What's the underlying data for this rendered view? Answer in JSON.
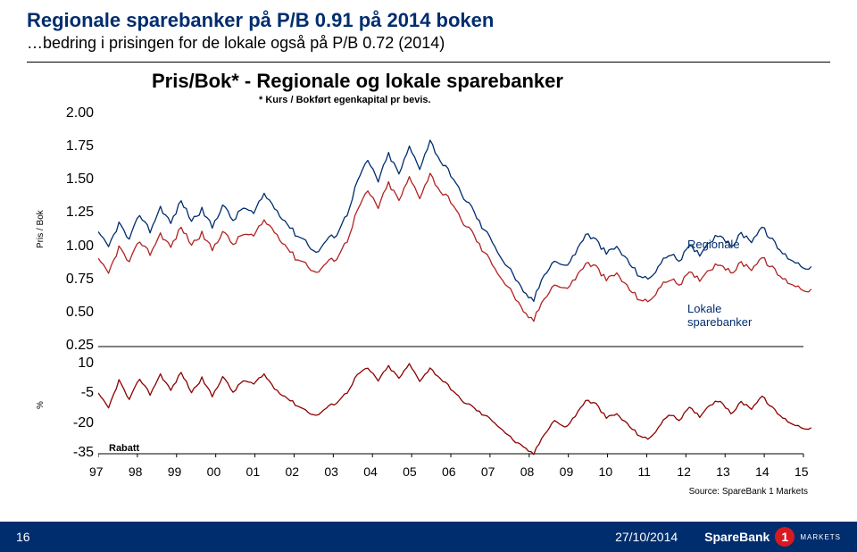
{
  "title": "Regionale sparebanker på P/B 0.91 på 2014 boken",
  "subtitle": "…bedring i prisingen for de lokale også på P/B 0.72 (2014)",
  "chart": {
    "title": "Pris/Bok* - Regionale og lokale sparebanker",
    "footnote": "* Kurs / Bokført egenkapital pr bevis.",
    "source": "Source: SpareBank 1 Markets",
    "y1_label": "Pris / Bok",
    "y2_label": "%",
    "y1_ticks": [
      2.0,
      1.75,
      1.5,
      1.25,
      1.0,
      0.75,
      0.5,
      0.25
    ],
    "y2_ticks": [
      10,
      -5,
      -20,
      -35
    ],
    "x_labels": [
      "97",
      "98",
      "99",
      "00",
      "01",
      "02",
      "03",
      "04",
      "05",
      "06",
      "07",
      "08",
      "09",
      "10",
      "11",
      "12",
      "13",
      "14",
      "15"
    ],
    "background": "#ffffff",
    "series_colors": {
      "regionale": "#002d6e",
      "lokale": "#b22222",
      "rabatt": "#8b0000"
    },
    "line_width": 1.3,
    "series_labels": {
      "regionale": "Regionale",
      "lokale": "Lokale\nsparebanker",
      "rabatt": "Rabatt"
    },
    "top_panel": {
      "ylim": [
        0.25,
        2.0
      ],
      "regionale": [
        1.1,
        1.0,
        1.18,
        1.05,
        1.25,
        1.12,
        1.3,
        1.18,
        1.35,
        1.2,
        1.28,
        1.15,
        1.32,
        1.2,
        1.3,
        1.25,
        1.4,
        1.3,
        1.2,
        1.1,
        1.05,
        0.95,
        1.05,
        1.1,
        1.25,
        1.5,
        1.65,
        1.5,
        1.7,
        1.55,
        1.75,
        1.6,
        1.8,
        1.65,
        1.55,
        1.4,
        1.3,
        1.15,
        1.05,
        0.9,
        0.8,
        0.65,
        0.6,
        0.8,
        0.9,
        0.85,
        0.95,
        1.1,
        1.05,
        0.95,
        1.0,
        0.9,
        0.8,
        0.75,
        0.85,
        0.95,
        0.9,
        1.0,
        0.95,
        1.05,
        1.1,
        1.0,
        1.1,
        1.05,
        1.15,
        1.05,
        0.95,
        0.9,
        0.85
      ],
      "lokale": [
        0.9,
        0.8,
        1.0,
        0.88,
        1.05,
        0.95,
        1.1,
        1.0,
        1.15,
        1.02,
        1.1,
        0.98,
        1.12,
        1.02,
        1.1,
        1.08,
        1.2,
        1.12,
        1.02,
        0.92,
        0.88,
        0.8,
        0.88,
        0.92,
        1.05,
        1.28,
        1.42,
        1.3,
        1.48,
        1.35,
        1.52,
        1.38,
        1.55,
        1.42,
        1.35,
        1.2,
        1.12,
        0.98,
        0.88,
        0.75,
        0.65,
        0.5,
        0.45,
        0.62,
        0.72,
        0.68,
        0.76,
        0.88,
        0.85,
        0.75,
        0.8,
        0.7,
        0.62,
        0.58,
        0.68,
        0.76,
        0.72,
        0.8,
        0.76,
        0.84,
        0.88,
        0.8,
        0.88,
        0.84,
        0.92,
        0.84,
        0.76,
        0.72,
        0.68
      ]
    },
    "bottom_panel": {
      "ylim": [
        -35,
        10
      ],
      "rabatt": [
        -5,
        -12,
        2,
        -8,
        3,
        -5,
        5,
        -3,
        6,
        -4,
        3,
        -6,
        4,
        -4,
        2,
        0,
        5,
        -2,
        -6,
        -10,
        -13,
        -16,
        -12,
        -9,
        -4,
        5,
        8,
        2,
        9,
        3,
        10,
        2,
        8,
        3,
        -2,
        -8,
        -11,
        -15,
        -18,
        -23,
        -28,
        -32,
        -35,
        -25,
        -18,
        -22,
        -16,
        -8,
        -10,
        -17,
        -15,
        -20,
        -25,
        -28,
        -22,
        -15,
        -18,
        -12,
        -16,
        -10,
        -8,
        -15,
        -9,
        -12,
        -6,
        -12,
        -17,
        -20,
        -22
      ]
    }
  },
  "footer": {
    "page": "16",
    "date": "27/10/2014",
    "brand": "SpareBank",
    "brand_num": "1",
    "brand_sub": "MARKETS"
  }
}
